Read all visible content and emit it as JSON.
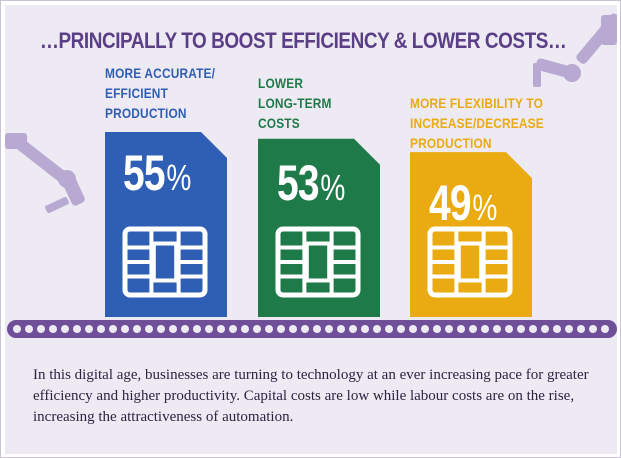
{
  "header": {
    "title": "…PRINCIPALLY TO BOOST EFFICIENCY & LOWER COSTS…"
  },
  "chart_data": {
    "type": "bar",
    "title": "…PRINCIPALLY TO BOOST EFFICIENCY & LOWER COSTS…",
    "categories": [
      "MORE ACCURATE/\nEFFICIENT\nPRODUCTION",
      "LOWER\nLONG-TERM\nCOSTS",
      "MORE FLEXIBILITY TO\nINCREASE/DECREASE\nPRODUCTION"
    ],
    "values": [
      55,
      53,
      49
    ],
    "value_labels": [
      "55",
      "53",
      "49"
    ],
    "unit": "%",
    "colors": [
      "#2f5fb4",
      "#1f7a4a",
      "#eaaa11"
    ],
    "label_colors": [
      "#2f5fb4",
      "#1f7a4a",
      "#eaaa11"
    ]
  },
  "footer": {
    "text": "In this digital age, businesses are turning to technology at an ever increasing pace for greater efficiency and higher productivity. Capital costs are low while labour costs are on the rise, increasing the attractiveness of automation."
  },
  "colors": {
    "accent": "#5b3f86",
    "conveyor": "#6e4f98",
    "background": "#edeaf3"
  }
}
